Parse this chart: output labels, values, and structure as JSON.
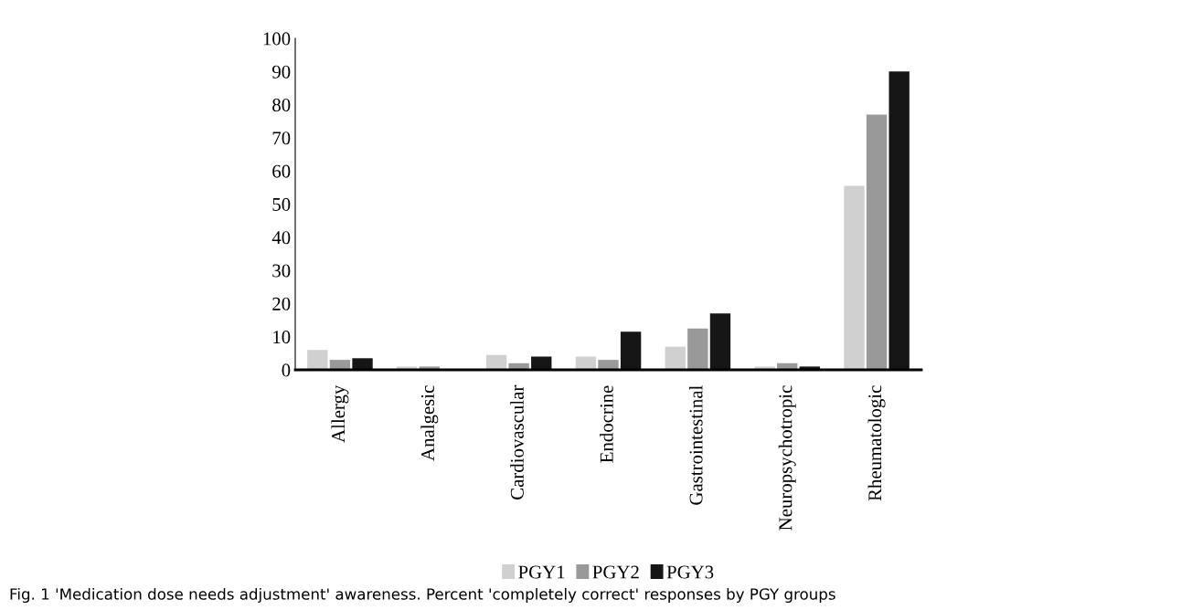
{
  "chart_data": {
    "type": "bar",
    "categories": [
      "Allergy",
      "Analgesic",
      "Cardiovascular",
      "Endocrine",
      "Gastrointestinal",
      "Neuropsychotropic",
      "Rheumatologic"
    ],
    "series": [
      {
        "name": "PGY1",
        "color": "#d0d0d0",
        "values": [
          6,
          1,
          4.5,
          4,
          7,
          1,
          55.5
        ]
      },
      {
        "name": "PGY2",
        "color": "#999999",
        "values": [
          3,
          1,
          2,
          3,
          12.5,
          2,
          77
        ]
      },
      {
        "name": "PGY3",
        "color": "#161616",
        "values": [
          3.5,
          0,
          4,
          11.5,
          17,
          1,
          90
        ]
      }
    ],
    "ylim": [
      0,
      100
    ],
    "yticks": [
      0,
      10,
      20,
      30,
      40,
      50,
      60,
      70,
      80,
      90,
      100
    ],
    "grid": false,
    "legend": "bottom",
    "annotations": [
      "Fig. 1 'Medication dose needs adjustment' awareness. Percent 'completely correct' responses by PGY groups"
    ]
  }
}
